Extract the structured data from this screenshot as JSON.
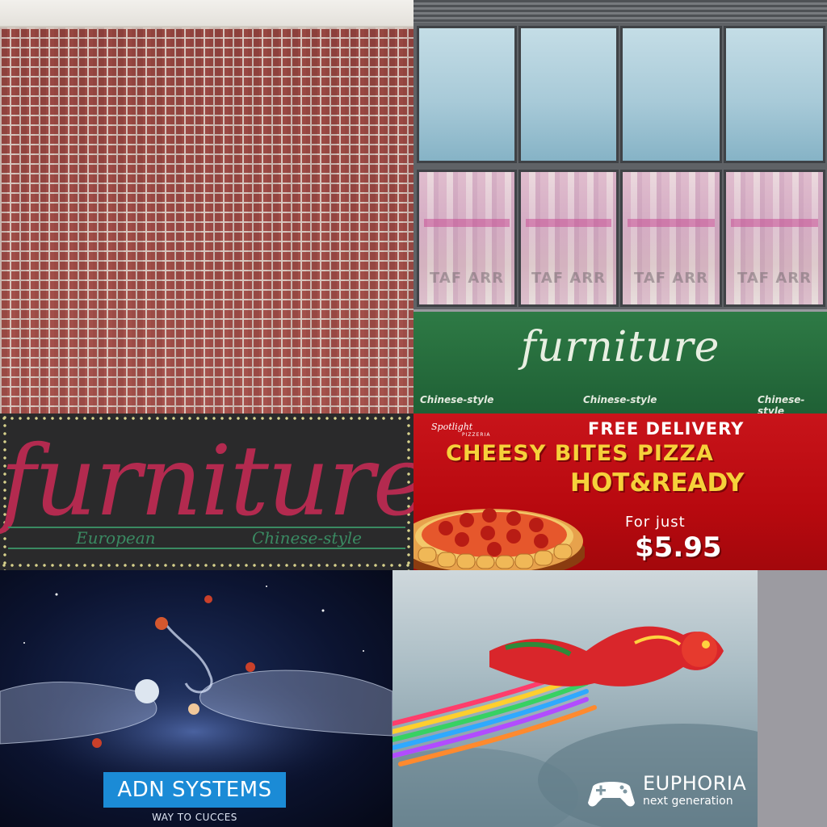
{
  "green_sign": {
    "title": "furniture",
    "subtitles": [
      "Chinese-style",
      "Chinese-style",
      "Chinese-style"
    ],
    "color": "#2e7a45"
  },
  "dark_sign": {
    "title": "furniture",
    "left_sub": "European",
    "right_sub": "Chinese-style",
    "title_color": "#b32a4f",
    "accent_color": "#3a8a62"
  },
  "pizza_ad": {
    "brand": "Spotlight",
    "brand_sub": "PIZZERIA",
    "headline": "FREE DELIVERY",
    "product": "CHEESY BITES PIZZA",
    "tagline": "HOT&READY",
    "price_prefix": "For just",
    "price": "$5.95",
    "bg_color": "#c8141a",
    "text_color": "#f6d13a"
  },
  "adn_ad": {
    "title": "ADN SYSTEMS",
    "tagline": "WAY TO CUCCES",
    "box_color": "#1b8bd6"
  },
  "euphoria_ad": {
    "name": "EUPHORIA",
    "subtitle": "next generation",
    "logo_icon": "gamepad-icon"
  },
  "windows": {
    "shop_text": "TAF ARR"
  },
  "brick_color": "#a8514b"
}
